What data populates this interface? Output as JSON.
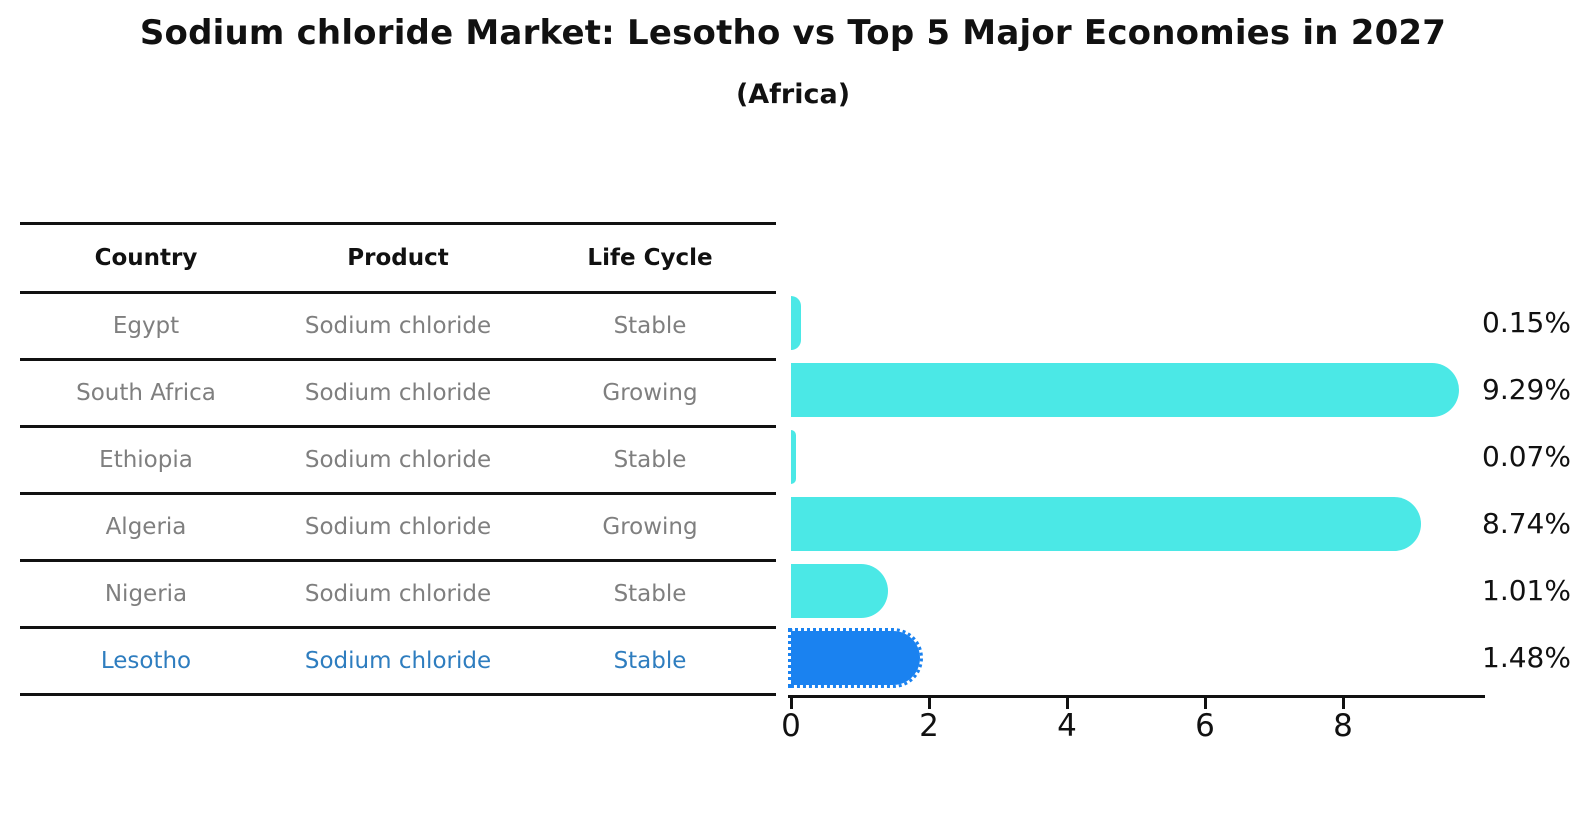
{
  "title": "Sodium chloride Market: Lesotho vs Top 5 Major Economies in 2027",
  "subtitle": "(Africa)",
  "table": {
    "headers": [
      "Country",
      "Product",
      "Life Cycle"
    ],
    "rows": [
      {
        "country": "Egypt",
        "product": "Sodium chloride",
        "life_cycle": "Stable"
      },
      {
        "country": "South Africa",
        "product": "Sodium chloride",
        "life_cycle": "Growing"
      },
      {
        "country": "Ethiopia",
        "product": "Sodium chloride",
        "life_cycle": "Stable"
      },
      {
        "country": "Algeria",
        "product": "Sodium chloride",
        "life_cycle": "Growing"
      },
      {
        "country": "Nigeria",
        "product": "Sodium chloride",
        "life_cycle": "Stable"
      },
      {
        "country": "Lesotho",
        "product": "Sodium chloride",
        "life_cycle": "Stable"
      }
    ],
    "highlighted_country": "Lesotho"
  },
  "chart_data": {
    "type": "bar",
    "orientation": "horizontal",
    "title": "Sodium chloride Market: Lesotho vs Top 5 Major Economies in 2027",
    "subtitle": "(Africa)",
    "categories": [
      "Egypt",
      "South Africa",
      "Ethiopia",
      "Algeria",
      "Nigeria",
      "Lesotho"
    ],
    "values": [
      0.15,
      9.29,
      0.07,
      8.74,
      1.01,
      1.48
    ],
    "value_labels": [
      "0.15%",
      "9.29%",
      "0.07%",
      "8.74%",
      "1.01%",
      "1.48%"
    ],
    "xlabel": "",
    "ylabel": "",
    "xticks": [
      0,
      2,
      4,
      6,
      8
    ],
    "xlim": [
      0,
      9.85
    ],
    "grid": false,
    "legend": false,
    "highlight_index": 5
  },
  "colors": {
    "text_strong": "#111111",
    "text_muted": "#7f7f7f",
    "highlight_text": "#2e7dbf",
    "line": "#111111",
    "bar": "#4be8e6",
    "highlight_bar": "#1a82f0"
  }
}
